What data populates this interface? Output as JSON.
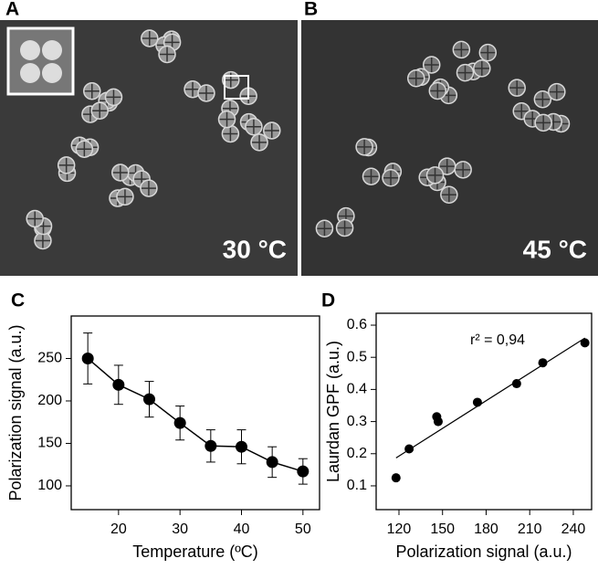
{
  "panels": [
    {
      "label": "A",
      "annotation": "30 °C"
    },
    {
      "label": "B",
      "annotation": "45 °C"
    }
  ],
  "chart_data": [
    {
      "type": "line",
      "panel": "C",
      "x_label": "Temperature (ºC)",
      "y_label": "Polarization signal (a.u.)",
      "x": [
        15,
        20,
        25,
        30,
        35,
        40,
        45,
        50
      ],
      "series": [
        {
          "color": "#000000",
          "values": [
            250,
            219,
            202,
            174,
            147,
            146,
            128,
            117
          ],
          "errors": [
            30,
            23,
            21,
            20,
            19,
            20,
            18,
            15
          ]
        }
      ],
      "xlim": [
        12.3,
        52.7
      ],
      "ylim": [
        72,
        300
      ],
      "xticks": [
        20,
        30,
        40,
        50
      ],
      "yticks": [
        100,
        150,
        200,
        250
      ]
    },
    {
      "type": "scatter",
      "panel": "D",
      "x_label": "Polarization signal (a.u.)",
      "y_label": "Laurdan GPF (a.u.)",
      "x": [
        118,
        127,
        146,
        147,
        174,
        201,
        219,
        248
      ],
      "series": [
        {
          "color": "#000000",
          "values": [
            0.125,
            0.215,
            0.315,
            0.3,
            0.36,
            0.418,
            0.483,
            0.545
          ]
        }
      ],
      "fit": {
        "x": [
          118,
          248
        ],
        "y": [
          0.187,
          0.56
        ]
      },
      "annotation": "r² = 0,94",
      "xlim": [
        104.3,
        252.6
      ],
      "ylim": [
        0.026,
        0.637
      ],
      "xticks": [
        120,
        150,
        180,
        210,
        240
      ],
      "yticks": [
        0.1,
        0.2,
        0.3,
        0.4,
        0.5,
        0.6
      ]
    }
  ]
}
